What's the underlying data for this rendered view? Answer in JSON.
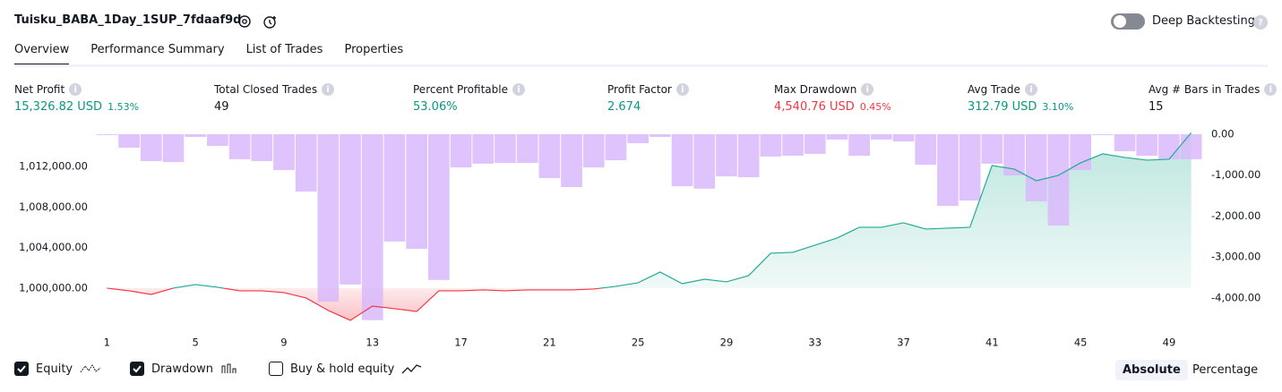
{
  "header": {
    "title": "Tuisku_BABA_1Day_1SUP_7fdaaf9d",
    "deep_backtesting": "Deep Backtesting"
  },
  "tabs": [
    "Overview",
    "Performance Summary",
    "List of Trades",
    "Properties"
  ],
  "active_tab": 0,
  "metrics": [
    {
      "label": "Net Profit",
      "value": "15,326.82 USD",
      "percent": "1.53%",
      "tone": "positive"
    },
    {
      "label": "Total Closed Trades",
      "value": "49",
      "tone": "neutral"
    },
    {
      "label": "Percent Profitable",
      "value": "53.06%",
      "tone": "positive"
    },
    {
      "label": "Profit Factor",
      "value": "2.674",
      "tone": "positive"
    },
    {
      "label": "Max Drawdown",
      "value": "4,540.76 USD",
      "percent": "0.45%",
      "tone": "negative"
    },
    {
      "label": "Avg Trade",
      "value": "312.79 USD",
      "percent": "3.10%",
      "tone": "positive"
    },
    {
      "label": "Avg # Bars in Trades",
      "value": "15",
      "tone": "neutral"
    }
  ],
  "chart_data": {
    "type": "combo",
    "x": [
      1,
      2,
      3,
      4,
      5,
      6,
      7,
      8,
      9,
      10,
      11,
      12,
      13,
      14,
      15,
      16,
      17,
      18,
      19,
      20,
      21,
      22,
      23,
      24,
      25,
      26,
      27,
      28,
      29,
      30,
      31,
      32,
      33,
      34,
      35,
      36,
      37,
      38,
      39,
      40,
      41,
      42,
      43,
      44,
      45,
      46,
      47,
      48,
      49,
      50
    ],
    "xlim": [
      0.5,
      50.5
    ],
    "xticks": [
      1,
      5,
      9,
      13,
      17,
      21,
      25,
      29,
      33,
      37,
      41,
      45,
      49
    ],
    "ylim": [
      996200,
      1015180
    ],
    "yticks": [
      {
        "value": 1000000,
        "label": "1,000,000.00"
      },
      {
        "value": 1004000,
        "label": "1,004,000.00"
      },
      {
        "value": 1008000,
        "label": "1,008,000.00"
      },
      {
        "value": 1012000,
        "label": "1,012,000.00"
      }
    ],
    "y2lim": [
      -4700,
      0
    ],
    "y2ticks": [
      {
        "value": 0,
        "label": "0.00"
      },
      {
        "value": -1000,
        "label": "-1,000.00"
      },
      {
        "value": -2000,
        "label": "-2,000.00"
      },
      {
        "value": -3000,
        "label": "-3,000.00"
      },
      {
        "value": -4000,
        "label": "-4,000.00"
      }
    ],
    "series": [
      {
        "name": "Equity",
        "type": "line",
        "color": "#22ab94",
        "negative_color": "#f23645",
        "values": [
          1000000,
          999735,
          999380,
          1000000,
          1000353,
          1000088,
          999735,
          999735,
          999560,
          999030,
          997800,
          996820,
          998230,
          997970,
          997700,
          999735,
          999735,
          999823,
          999735,
          999823,
          999823,
          999823,
          999912,
          1000177,
          1000530,
          1001590,
          1000440,
          1000880,
          1000620,
          1001236,
          1003444,
          1003532,
          1004240,
          1004945,
          1006004,
          1006004,
          1006446,
          1005828,
          1005916,
          1006004,
          1012100,
          1011744,
          1010596,
          1011126,
          1012360,
          1013245,
          1012892,
          1012627,
          1012715,
          1015326.82
        ]
      },
      {
        "name": "Drawdown",
        "type": "bar",
        "axis": "y2",
        "color": "#d9b8fb",
        "values": [
          -20,
          -330,
          -655,
          -680,
          -65,
          -285,
          -610,
          -655,
          -875,
          -1400,
          -4090,
          -3670,
          -4540.76,
          -2620,
          -2800,
          -3560,
          -810,
          -720,
          -700,
          -700,
          -1070,
          -1290,
          -810,
          -635,
          -220,
          -65,
          -1270,
          -1330,
          -1030,
          -1050,
          -545,
          -525,
          -480,
          -130,
          -525,
          -130,
          -175,
          -745,
          -1750,
          -1620,
          -720,
          -1005,
          -1640,
          -2230,
          -875,
          -20,
          -415,
          -525,
          -610,
          -610
        ]
      }
    ]
  },
  "controls": {
    "buy_hold": "Buy & hold equity",
    "modes": [
      "Absolute",
      "Percentage"
    ],
    "active_mode": 0
  }
}
